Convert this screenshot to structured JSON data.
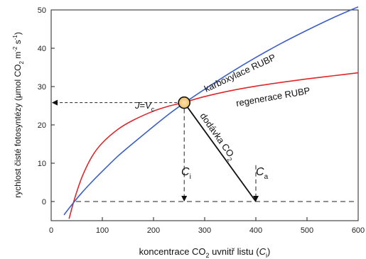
{
  "chart_data": {
    "type": "line",
    "xlabel": {
      "pre": "koncentrace CO",
      "sub": "2",
      "mid": " uvnitř listu (",
      "italic": "C",
      "sub2": "i",
      "post": ")"
    },
    "ylabel": {
      "pre": "rychlost čisté fotosyntézy (",
      "mu": "μ",
      "mid": "mol CO",
      "sub": "2",
      "sp1": " m",
      "sup1": "-2",
      "sp2": " s",
      "sup2": "-1",
      "post": ")"
    },
    "xlim": [
      0,
      600
    ],
    "ylim": [
      -5,
      50
    ],
    "xticks": [
      "0",
      "100",
      "200",
      "300",
      "400",
      "500",
      "600"
    ],
    "xtick_values": [
      0,
      100,
      200,
      300,
      400,
      500,
      600
    ],
    "yticks": [
      "0",
      "10",
      "20",
      "30",
      "40",
      "50"
    ],
    "ytick_values": [
      0,
      10,
      20,
      30,
      40,
      50
    ],
    "grid": false,
    "series": [
      {
        "name": "karboxylace RUBP",
        "color": "#3a5fc8",
        "x": [
          25,
          40,
          60,
          80,
          100,
          130,
          160,
          200,
          230,
          260,
          300,
          350,
          400,
          450,
          500,
          550,
          600
        ],
        "y": [
          -3.5,
          -0.9,
          2.3,
          5.2,
          7.9,
          11.8,
          15.2,
          19.6,
          22.8,
          25.7,
          29.3,
          33.6,
          37.6,
          41.3,
          44.7,
          47.9,
          50.8
        ]
      },
      {
        "name": "regenerace RUBP",
        "color": "#e0262a",
        "x": [
          35,
          45,
          60,
          80,
          100,
          130,
          160,
          200,
          230,
          260,
          300,
          350,
          400,
          450,
          500,
          550,
          600
        ],
        "y": [
          -4.5,
          0.4,
          6.3,
          11.8,
          15.3,
          18.8,
          21.2,
          23.6,
          24.9,
          25.9,
          27.4,
          28.9,
          30.1,
          31.1,
          32.0,
          32.8,
          33.6
        ]
      },
      {
        "name": "dodávka CO2",
        "color": "#111111",
        "x": [
          260,
          400
        ],
        "y": [
          25.8,
          0
        ]
      }
    ],
    "intersection": {
      "x": 260,
      "y": 25.8
    },
    "annotations": {
      "karboxylace": "karboxylace RUBP",
      "regenerace": "regenerace RUBP",
      "dodavka": {
        "pre": "dodávka CO",
        "sub": "2"
      },
      "j": {
        "j": "J",
        "eq": "=",
        "v": "V",
        "sub": "c"
      },
      "ci": {
        "c": "C",
        "sub": "i"
      },
      "ca": {
        "c": "C",
        "sub": "a"
      }
    }
  }
}
